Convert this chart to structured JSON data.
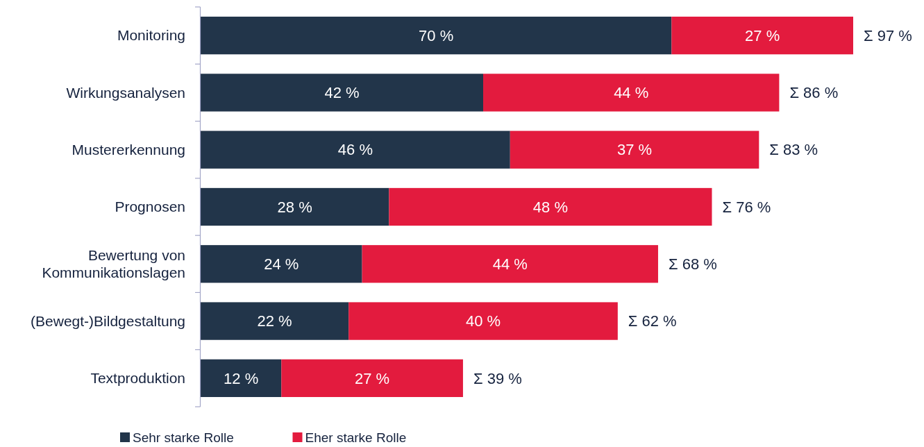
{
  "chart_data": {
    "type": "bar",
    "orientation": "horizontal",
    "stacked": true,
    "categories": [
      "Monitoring",
      "Wirkungsanalysen",
      "Mustererkennung",
      "Prognosen",
      "Bewertung von Kommunikationslagen",
      "(Bewegt-)Bildgestaltung",
      "Textproduktion"
    ],
    "series": [
      {
        "name": "Sehr starke Rolle",
        "color": "#22354a",
        "values": [
          70,
          42,
          46,
          28,
          24,
          22,
          12
        ],
        "value_labels": [
          "70 %",
          "42 %",
          "46 %",
          "28 %",
          "24 %",
          "22 %",
          "12 %"
        ]
      },
      {
        "name": "Eher starke Rolle",
        "color": "#e31b3e",
        "values": [
          27,
          44,
          37,
          48,
          44,
          40,
          27
        ],
        "value_labels": [
          "27 %",
          "44 %",
          "37 %",
          "48 %",
          "44 %",
          "40 %",
          "27 %"
        ]
      }
    ],
    "totals": [
      "Σ 97 %",
      "Σ 86 %",
      "Σ 83 %",
      "Σ 76 %",
      "Σ 68 %",
      "Σ 62 %",
      "Σ 39 %"
    ],
    "legend": "bottom"
  }
}
